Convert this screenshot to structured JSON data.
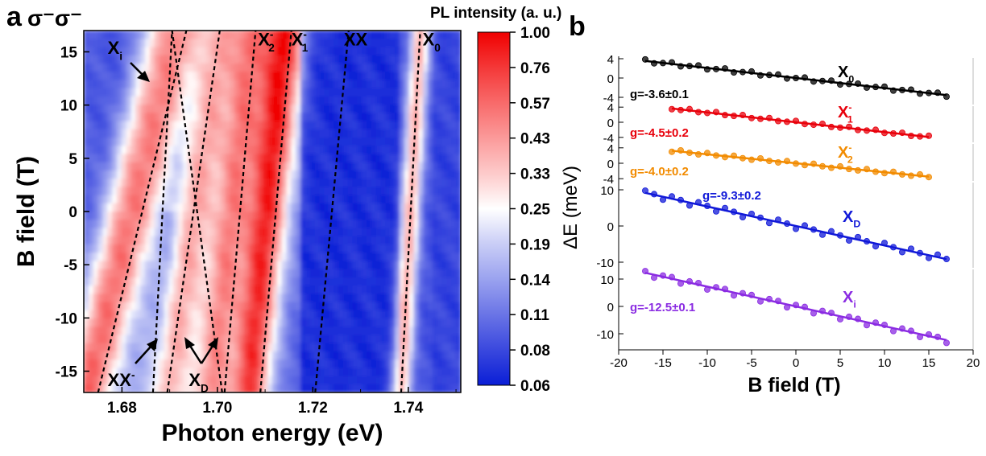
{
  "chart_data": [
    {
      "panel": "a",
      "type": "heatmap",
      "polarization": "σ⁻σ⁻",
      "xlabel": "Photon energy (eV)",
      "ylabel": "B field (T)",
      "xlim": [
        1.672,
        1.751
      ],
      "ylim": [
        -17,
        17
      ],
      "xticks": [
        "1.68",
        "1.70",
        "1.72",
        "1.74"
      ],
      "xtick_values": [
        1.68,
        1.7,
        1.72,
        1.74
      ],
      "yticks": [
        "15",
        "10",
        "5",
        "0",
        "-5",
        "-10",
        "-15"
      ],
      "ytick_values": [
        15,
        10,
        5,
        0,
        -5,
        -10,
        -15
      ],
      "colorbar": {
        "label": "PL intensity (a. u.)",
        "ticks": [
          "1.00",
          "0.76",
          "0.57",
          "0.43",
          "0.33",
          "0.25",
          "0.19",
          "0.14",
          "0.11",
          "0.08",
          "0.06"
        ],
        "colors": [
          "#f00000",
          "#f43838",
          "#f86a6a",
          "#fb9a9a",
          "#fdcaca",
          "#ffffff",
          "#c9cdf6",
          "#9aa2ef",
          "#6a74e6",
          "#3a48de",
          "#0a1ed6"
        ]
      },
      "peaks": [
        {
          "label": "XX",
          "sup": "-",
          "sub": "",
          "e0": 1.6925,
          "slope": 0.00058
        },
        {
          "label": "X",
          "sup": "",
          "sub": "i",
          "e0": 1.6985,
          "slope": -0.00058
        },
        {
          "label": "X",
          "sup": "",
          "sub": "D",
          "e0": 1.6955,
          "slope": 0.00044
        },
        {
          "label": "X",
          "sup": "-",
          "sub": "2",
          "e0": 1.7045,
          "slope": 0.00026
        },
        {
          "label": "X",
          "sup": "-",
          "sub": "1",
          "e0": 1.7125,
          "slope": 0.00018
        },
        {
          "label": "XX",
          "sup": "",
          "sub": "",
          "e0": 1.724,
          "slope": 0.00018
        },
        {
          "label": "X",
          "sup": "",
          "sub": "0",
          "e0": 1.7405,
          "slope": 0.00012
        }
      ],
      "dashed_lines": [
        {
          "e_at_minus17": 1.675,
          "e_at_17": 1.6935
        },
        {
          "e_at_minus17": 1.6865,
          "e_at_17": 1.6905
        },
        {
          "e_at_minus17": 1.6895,
          "e_at_17": 1.7005
        },
        {
          "e_at_minus17": 1.701,
          "e_at_17": 1.6905
        },
        {
          "e_at_minus17": 1.7015,
          "e_at_17": 1.708
        },
        {
          "e_at_minus17": 1.709,
          "e_at_17": 1.7155
        },
        {
          "e_at_minus17": 1.7205,
          "e_at_17": 1.7275
        },
        {
          "e_at_minus17": 1.7385,
          "e_at_17": 1.7425
        }
      ],
      "annotations": [
        {
          "label": "X",
          "sub": "i",
          "sup": "",
          "at": [
            1.677,
            15.4
          ]
        },
        {
          "label": "XX",
          "sub": "",
          "sup": "-",
          "at": [
            1.677,
            -15.8
          ]
        },
        {
          "label": "X",
          "sub": "D",
          "sup": "",
          "at": [
            1.694,
            -15.8
          ]
        },
        {
          "label": "X",
          "sub": "2",
          "sup": "-",
          "at": [
            1.7085,
            16.2
          ]
        },
        {
          "label": "X",
          "sub": "1",
          "sup": "-",
          "at": [
            1.7155,
            16.2
          ]
        },
        {
          "label": "XX",
          "sub": "",
          "sup": "",
          "at": [
            1.7265,
            16.2
          ]
        },
        {
          "label": "X",
          "sub": "0",
          "sup": "",
          "at": [
            1.743,
            16.2
          ]
        }
      ]
    },
    {
      "panel": "b",
      "type": "scatter",
      "xlabel": "B field (T)",
      "ylabel": "ΔE (meV)",
      "xlim": [
        -20,
        20
      ],
      "xticks": [
        "-20",
        "-15",
        "-10",
        "-5",
        "0",
        "5",
        "10",
        "15",
        "20"
      ],
      "xtick_values": [
        -20,
        -15,
        -10,
        -5,
        0,
        5,
        10,
        15,
        20
      ],
      "series": [
        {
          "name": "X",
          "sub": "0",
          "sup": "",
          "fit": "g=-3.6±0.1",
          "g": -3.6,
          "color": "#000000",
          "ylim": [
            -5,
            5
          ],
          "yticks": [
            "4",
            "0",
            "-4"
          ],
          "ytick_values": [
            4,
            0,
            -4
          ],
          "brange": [
            -17,
            17
          ]
        },
        {
          "name": "X",
          "sub": "1",
          "sup": "-",
          "fit": "g=-4.5±0.2",
          "g": -4.5,
          "color": "#e8000b",
          "ylim": [
            -5,
            5
          ],
          "yticks": [
            "4",
            "0",
            "-4"
          ],
          "ytick_values": [
            4,
            0,
            -4
          ],
          "brange": [
            -14,
            15
          ]
        },
        {
          "name": "X",
          "sub": "2",
          "sup": "-",
          "fit": "g=-4.0±0.2",
          "g": -4.0,
          "color": "#f28b00",
          "ylim": [
            -5,
            5
          ],
          "yticks": [
            "4",
            "0",
            "-4"
          ],
          "ytick_values": [
            4,
            0,
            -4
          ],
          "brange": [
            -14,
            15
          ]
        },
        {
          "name": "X",
          "sub": "D",
          "sup": "",
          "fit": "g=-9.3±0.2",
          "g": -9.3,
          "color": "#1018d8",
          "ylim": [
            -12,
            12
          ],
          "yticks": [
            "10",
            "0",
            "-10"
          ],
          "ytick_values": [
            10,
            0,
            -10
          ],
          "brange": [
            -17,
            17
          ]
        },
        {
          "name": "X",
          "sub": "i",
          "sup": "",
          "fit": "g=-12.5±0.1",
          "g": -12.5,
          "color": "#8a2be2",
          "ylim": [
            -15,
            15
          ],
          "yticks": [
            "10",
            "0",
            "-10"
          ],
          "ytick_values": [
            10,
            0,
            -10
          ],
          "brange": [
            -17,
            17
          ]
        }
      ]
    }
  ]
}
